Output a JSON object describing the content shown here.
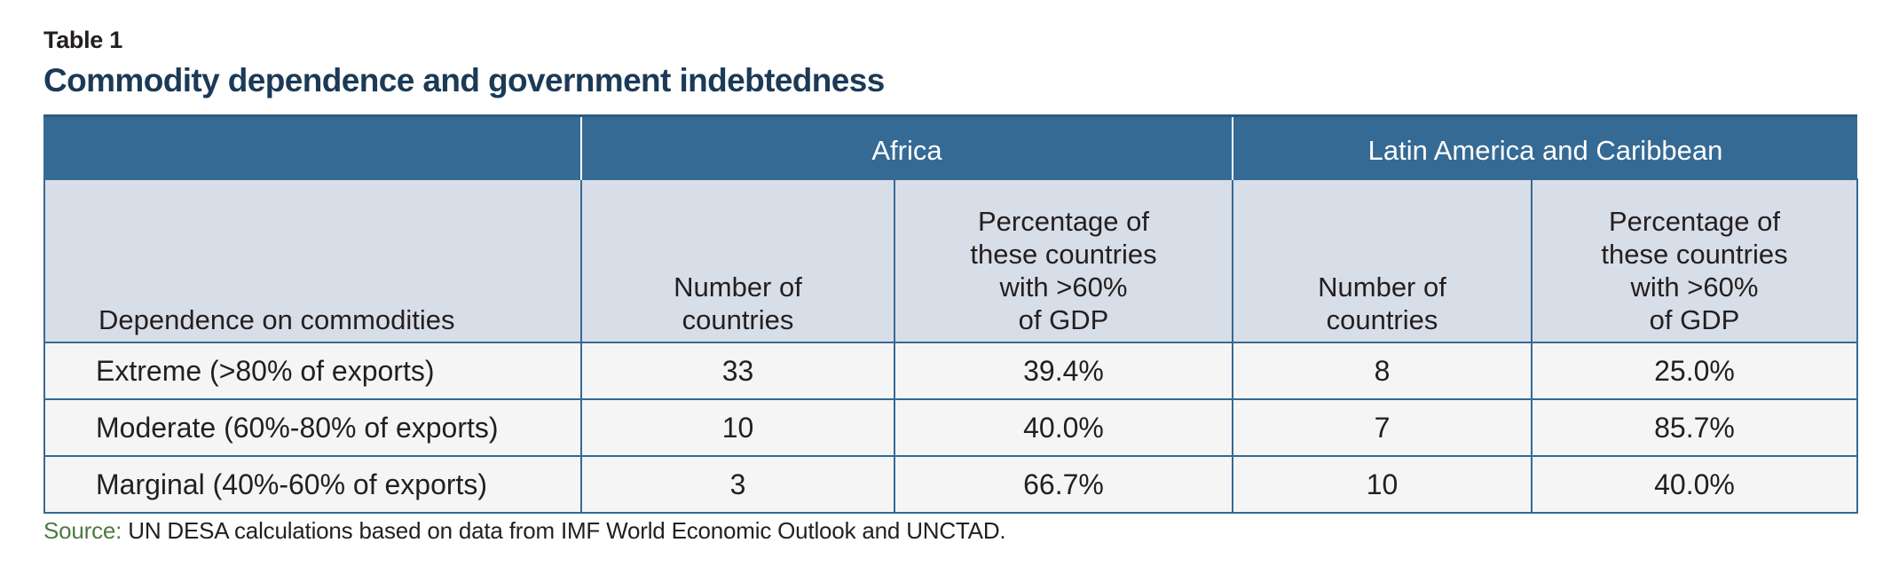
{
  "table_label": "Table 1",
  "title": "Commodity dependence and government indebtedness",
  "regions": [
    {
      "name": "Africa"
    },
    {
      "name": "Latin America and Caribbean"
    }
  ],
  "columns": {
    "dependence": "Dependence on commodities",
    "number": "Number of\ncountries",
    "percentage": "Percentage of\nthese countries\nwith >60%\nof GDP"
  },
  "rows": [
    {
      "label": "Extreme (>80% of exports)",
      "africa_number": "33",
      "africa_pct": "39.4%",
      "lac_number": "8",
      "lac_pct": "25.0%"
    },
    {
      "label": "Moderate (60%-80% of exports)",
      "africa_number": "10",
      "africa_pct": "40.0%",
      "lac_number": "7",
      "lac_pct": "85.7%"
    },
    {
      "label": "Marginal (40%-60% of exports)",
      "africa_number": "3",
      "africa_pct": "66.7%",
      "lac_number": "10",
      "lac_pct": "40.0%"
    }
  ],
  "source": {
    "label": "Source:",
    "text": " UN DESA calculations based on data from IMF World Economic Outlook and UNCTAD."
  },
  "colors": {
    "header_blue": "#356a94",
    "title_navy": "#1b3a57",
    "subheader_grey": "#d8dee7",
    "source_green": "#4e7a45"
  }
}
